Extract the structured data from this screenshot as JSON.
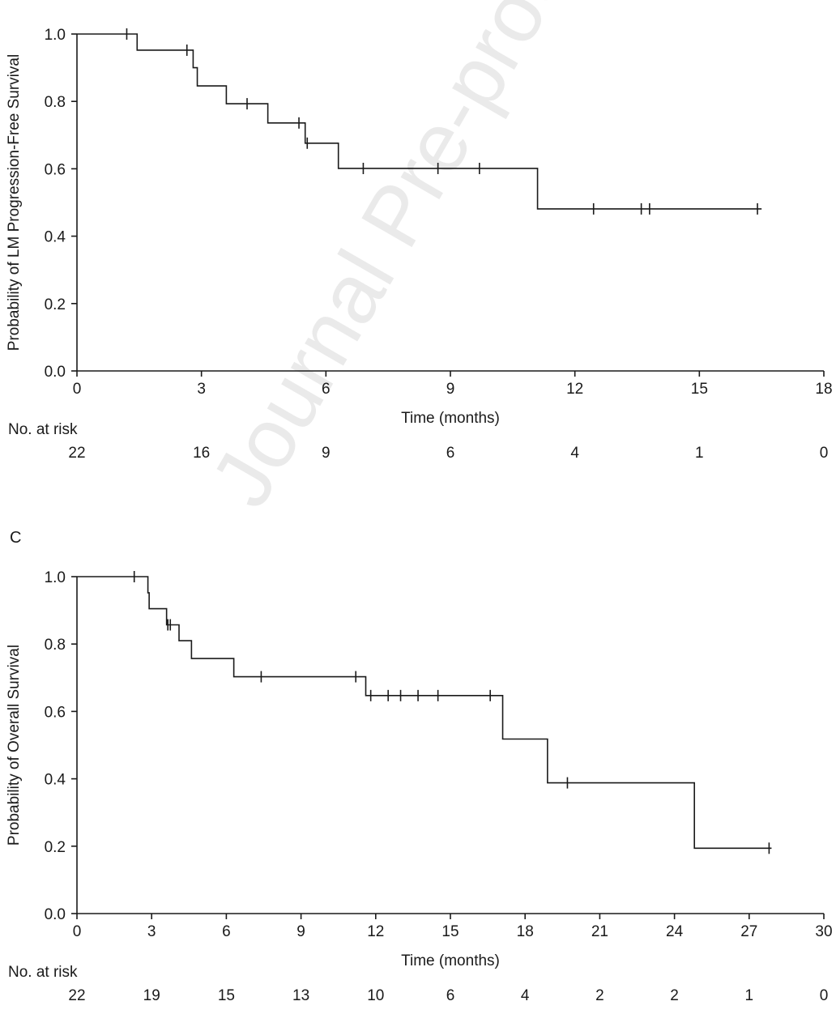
{
  "watermark": "Journal Pre-proof",
  "chart_data": [
    {
      "type": "line",
      "subtype": "kaplan-meier",
      "panel_label": "",
      "ylabel": "Probability of LM Progression-Free Survival",
      "xlabel": "Time (months)",
      "xlim": [
        0,
        18
      ],
      "ylim": [
        0,
        1.0
      ],
      "xticks": [
        0,
        3,
        6,
        9,
        12,
        15,
        18
      ],
      "yticks": [
        "0.0",
        "0.2",
        "0.4",
        "0.6",
        "0.8",
        "1.0"
      ],
      "steps": [
        [
          0,
          1.0
        ],
        [
          1.45,
          0.952
        ],
        [
          2.8,
          0.9
        ],
        [
          2.9,
          0.846
        ],
        [
          3.6,
          0.793
        ],
        [
          4.6,
          0.736
        ],
        [
          5.5,
          0.676
        ],
        [
          6.3,
          0.601
        ],
        [
          11.1,
          0.481
        ]
      ],
      "end_x": 16.5,
      "censor_marks": [
        [
          1.2,
          1.0
        ],
        [
          2.65,
          0.952
        ],
        [
          4.1,
          0.793
        ],
        [
          5.35,
          0.736
        ],
        [
          5.55,
          0.676
        ],
        [
          6.9,
          0.601
        ],
        [
          8.7,
          0.601
        ],
        [
          9.7,
          0.601
        ],
        [
          12.45,
          0.481
        ],
        [
          13.6,
          0.481
        ],
        [
          13.8,
          0.481
        ],
        [
          16.4,
          0.481
        ]
      ],
      "risk_table": {
        "label": "No. at risk",
        "times": [
          0,
          3,
          6,
          9,
          12,
          15,
          18
        ],
        "counts": [
          "22",
          "16",
          "9",
          "6",
          "4",
          "1",
          "0"
        ]
      }
    },
    {
      "type": "line",
      "subtype": "kaplan-meier",
      "panel_label": "C",
      "ylabel": "Probability of Overall Survival",
      "xlabel": "Time (months)",
      "xlim": [
        0,
        30
      ],
      "ylim": [
        0,
        1.0
      ],
      "xticks": [
        0,
        3,
        6,
        9,
        12,
        15,
        18,
        21,
        24,
        27,
        30
      ],
      "yticks": [
        "0.0",
        "0.2",
        "0.4",
        "0.6",
        "0.8",
        "1.0"
      ],
      "steps": [
        [
          0,
          1.0
        ],
        [
          2.85,
          0.952
        ],
        [
          2.9,
          0.905
        ],
        [
          3.6,
          0.857
        ],
        [
          4.1,
          0.81
        ],
        [
          4.6,
          0.757
        ],
        [
          6.3,
          0.703
        ],
        [
          11.6,
          0.647
        ],
        [
          17.1,
          0.518
        ],
        [
          18.9,
          0.388
        ],
        [
          24.8,
          0.194
        ]
      ],
      "end_x": 27.9,
      "censor_marks": [
        [
          2.3,
          1.0
        ],
        [
          3.65,
          0.857
        ],
        [
          3.75,
          0.857
        ],
        [
          7.4,
          0.703
        ],
        [
          11.2,
          0.703
        ],
        [
          11.8,
          0.647
        ],
        [
          12.5,
          0.647
        ],
        [
          13.0,
          0.647
        ],
        [
          13.7,
          0.647
        ],
        [
          14.5,
          0.647
        ],
        [
          16.6,
          0.647
        ],
        [
          19.7,
          0.388
        ],
        [
          27.8,
          0.194
        ]
      ],
      "risk_table": {
        "label": "No. at risk",
        "times": [
          0,
          3,
          6,
          9,
          12,
          15,
          18,
          21,
          24,
          27,
          30
        ],
        "counts": [
          "22",
          "19",
          "15",
          "13",
          "10",
          "6",
          "4",
          "2",
          "2",
          "1",
          "0"
        ]
      }
    }
  ]
}
